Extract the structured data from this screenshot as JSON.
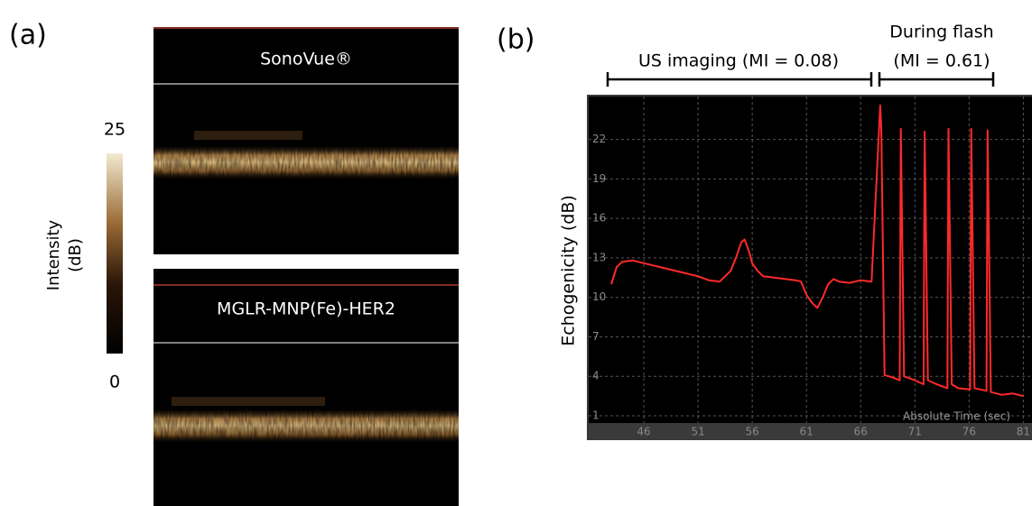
{
  "panel_a": {
    "label": "(a)",
    "colorbar": {
      "label_lines": [
        "Intensity",
        "(dB)"
      ],
      "ticks": [
        0,
        25
      ]
    },
    "images": [
      "SonoVue®",
      "MGLR-MNP(Fe)-HER2"
    ]
  },
  "chart_data": {
    "type": "line",
    "panel_label": "(b)",
    "ylabel": "Echogenicity (dB)",
    "xlabel": "Absolute Time (sec)",
    "annotations": [
      "US imaging (MI = 0.08)",
      "During flash",
      "(MI = 0.61)"
    ],
    "x": [
      43,
      43.5,
      44,
      45,
      46,
      47,
      48,
      49,
      50,
      51,
      52,
      53,
      54,
      54.5,
      55,
      55.3,
      55.7,
      56,
      56.5,
      57,
      58,
      59,
      60,
      60.5,
      61,
      61.5,
      62,
      62.5,
      63,
      63.5,
      64,
      65,
      66,
      67,
      67.8,
      67.9,
      68.2,
      69,
      69.6,
      69.7,
      70,
      71,
      71.8,
      71.9,
      72.2,
      73,
      74,
      74.1,
      74.4,
      75,
      76.1,
      76.2,
      76.5,
      77.6,
      77.7,
      78,
      79,
      80,
      81
    ],
    "series": [
      {
        "color": "#ff2a2a",
        "values": [
          11,
          12.3,
          12.7,
          12.8,
          12.6,
          12.4,
          12.2,
          12,
          11.8,
          11.6,
          11.3,
          11.2,
          12,
          13,
          14.2,
          14.4,
          13.5,
          12.6,
          12,
          11.6,
          11.5,
          11.4,
          11.3,
          11.2,
          10.2,
          9.6,
          9.2,
          10,
          11,
          11.4,
          11.2,
          11.1,
          11.3,
          11.2,
          24.6,
          22.8,
          4.1,
          3.9,
          3.7,
          22.8,
          4.0,
          3.7,
          3.4,
          22.6,
          3.7,
          3.4,
          3.1,
          22.8,
          3.4,
          3.1,
          3.0,
          22.8,
          3.1,
          2.9,
          22.7,
          2.8,
          2.6,
          2.7,
          2.5
        ]
      }
    ],
    "xlim": [
      40.75,
      81.8
    ],
    "ylim": [
      -0.85,
      25.4
    ],
    "xticks": [
      46,
      51,
      56,
      61,
      66,
      71,
      76,
      81
    ],
    "yticks": [
      1,
      4,
      7,
      10,
      13,
      16,
      19,
      22
    ],
    "grid": true
  }
}
